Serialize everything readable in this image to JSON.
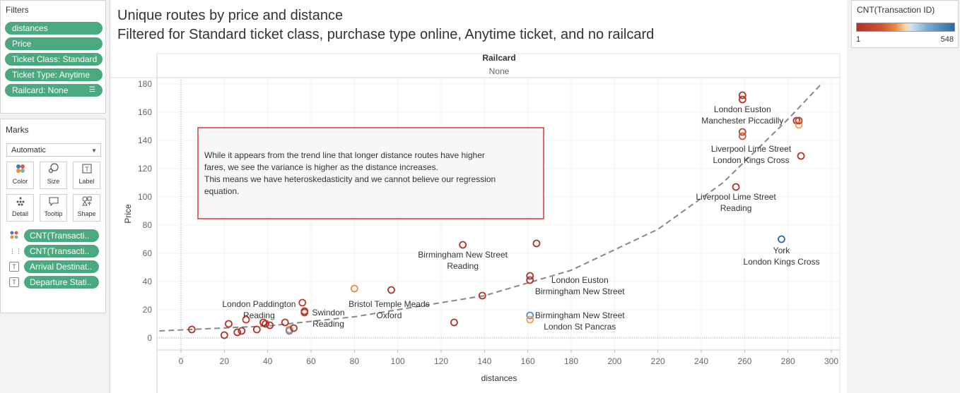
{
  "filters": {
    "title": "Filters",
    "items": [
      "distances",
      "Price",
      "Ticket Class: Standard",
      "Ticket Type: Anytime",
      "Railcard: None"
    ]
  },
  "marks": {
    "title": "Marks",
    "mark_type": "Automatic",
    "buttons": [
      "Color",
      "Size",
      "Label",
      "Detail",
      "Tooltip",
      "Shape"
    ],
    "fields": [
      {
        "icon": "color-dots-icon",
        "label": "CNT(Transacti.."
      },
      {
        "icon": "detail-dots-icon",
        "label": "CNT(Transacti.."
      },
      {
        "icon": "text-label-icon",
        "label": "Arrival Destinat.."
      },
      {
        "icon": "text-label-icon",
        "label": "Departure Stati.."
      }
    ]
  },
  "sheet": {
    "title_line1": "Unique routes by price and distance",
    "title_line2": "Filtered for Standard ticket class, purchase type online, Anytime ticket, and no railcard"
  },
  "legend": {
    "title": "CNT(Transaction ID)",
    "min": "1",
    "max": "548",
    "colors": {
      "low": "#b0342a",
      "mid": "#f7d9a8",
      "high": "#2b6aa6"
    }
  },
  "annotation": {
    "lines": [
      "While it appears from the trend line that longer distance routes have higher",
      "fares, we see the variance is higher as the distance increases.",
      "This means we have heteroskedasticity and we cannot believe our regression",
      "equation."
    ],
    "border_color": "#d23a3a"
  },
  "chart_data": {
    "type": "scatter",
    "header_title": "Railcard",
    "header_value": "None",
    "xlabel": "distances",
    "ylabel": "Price",
    "xlim": [
      -10,
      300
    ],
    "ylim": [
      -5,
      180
    ],
    "x_ticks": [
      0,
      20,
      40,
      60,
      80,
      100,
      120,
      140,
      160,
      180,
      200,
      220,
      240,
      260,
      280,
      300
    ],
    "y_ticks": [
      0,
      20,
      40,
      60,
      80,
      100,
      120,
      140,
      160,
      180
    ],
    "trend_line": {
      "type": "exponential",
      "style": "dashed",
      "color": "#888888",
      "points": [
        [
          -10,
          5
        ],
        [
          40,
          8.5
        ],
        [
          80,
          15
        ],
        [
          140,
          30
        ],
        [
          180,
          48
        ],
        [
          220,
          77
        ],
        [
          250,
          110
        ],
        [
          280,
          155
        ],
        [
          296,
          181
        ]
      ]
    },
    "points": [
      {
        "x": 5,
        "y": 6,
        "c": "#b0342a"
      },
      {
        "x": 20,
        "y": 2,
        "c": "#b0342a"
      },
      {
        "x": 22,
        "y": 10,
        "c": "#b0342a"
      },
      {
        "x": 26,
        "y": 4,
        "c": "#b0342a"
      },
      {
        "x": 28,
        "y": 5,
        "c": "#b0342a"
      },
      {
        "x": 30,
        "y": 13,
        "c": "#c2402a"
      },
      {
        "x": 35,
        "y": 6,
        "c": "#b0342a"
      },
      {
        "x": 38,
        "y": 11,
        "c": "#b0342a"
      },
      {
        "x": 39,
        "y": 10,
        "c": "#b0342a"
      },
      {
        "x": 41,
        "y": 9,
        "c": "#b0342a"
      },
      {
        "x": 48,
        "y": 11,
        "c": "#b0342a"
      },
      {
        "x": 50,
        "y": 6,
        "c": "#f08a3c"
      },
      {
        "x": 50,
        "y": 5,
        "c": "#5a8fc4"
      },
      {
        "x": 52,
        "y": 7,
        "c": "#b0342a"
      },
      {
        "x": 56,
        "y": 25,
        "c": "#c2402a"
      },
      {
        "x": 57,
        "y": 19,
        "c": "#b0342a"
      },
      {
        "x": 57,
        "y": 18,
        "c": "#c2402a"
      },
      {
        "x": 80,
        "y": 35,
        "c": "#f08a3c"
      },
      {
        "x": 97,
        "y": 34,
        "c": "#b0342a"
      },
      {
        "x": 126,
        "y": 11,
        "c": "#b0342a"
      },
      {
        "x": 130,
        "y": 66,
        "c": "#b0342a"
      },
      {
        "x": 139,
        "y": 30,
        "c": "#b0342a"
      },
      {
        "x": 161,
        "y": 44,
        "c": "#b0342a"
      },
      {
        "x": 161,
        "y": 41,
        "c": "#b0342a"
      },
      {
        "x": 161,
        "y": 16,
        "c": "#5a8fc4"
      },
      {
        "x": 161,
        "y": 13,
        "c": "#f0a050"
      },
      {
        "x": 164,
        "y": 67,
        "c": "#b0342a"
      },
      {
        "x": 256,
        "y": 107,
        "c": "#b0342a"
      },
      {
        "x": 259,
        "y": 172,
        "c": "#b0342a"
      },
      {
        "x": 259,
        "y": 169,
        "c": "#b0342a"
      },
      {
        "x": 259,
        "y": 146,
        "c": "#c2402a"
      },
      {
        "x": 259,
        "y": 143,
        "c": "#d05a30"
      },
      {
        "x": 277,
        "y": 70,
        "c": "#2b6aa6"
      },
      {
        "x": 284,
        "y": 154,
        "c": "#b0342a"
      },
      {
        "x": 285,
        "y": 151,
        "c": "#f0a050"
      },
      {
        "x": 285,
        "y": 154,
        "c": "#c2402a"
      },
      {
        "x": 286,
        "y": 129,
        "c": "#b0342a"
      }
    ],
    "labels": [
      {
        "lines": [
          "London Paddington",
          "Reading"
        ],
        "x": 36,
        "y": 22
      },
      {
        "lines": [
          "Swindon",
          "Reading"
        ],
        "x": 68,
        "y": 16
      },
      {
        "lines": [
          "Bristol Temple Meads",
          "Oxford"
        ],
        "x": 96,
        "y": 22
      },
      {
        "lines": [
          "Birmingham New Street",
          "Reading"
        ],
        "x": 130,
        "y": 57
      },
      {
        "lines": [
          "London Euston",
          "Birmingham New Street"
        ],
        "x": 184,
        "y": 39
      },
      {
        "lines": [
          "Birmingham New Street",
          "London St Pancras"
        ],
        "x": 184,
        "y": 14
      },
      {
        "lines": [
          "Liverpool Lime Street",
          "Reading"
        ],
        "x": 256,
        "y": 98
      },
      {
        "lines": [
          "York",
          "London Kings Cross"
        ],
        "x": 277,
        "y": 60
      },
      {
        "lines": [
          "London Euston",
          "Manchester Piccadilly"
        ],
        "x": 259,
        "y": 160
      },
      {
        "lines": [
          "Liverpool Lime Street",
          "London Kings Cross"
        ],
        "x": 263,
        "y": 132
      }
    ]
  }
}
